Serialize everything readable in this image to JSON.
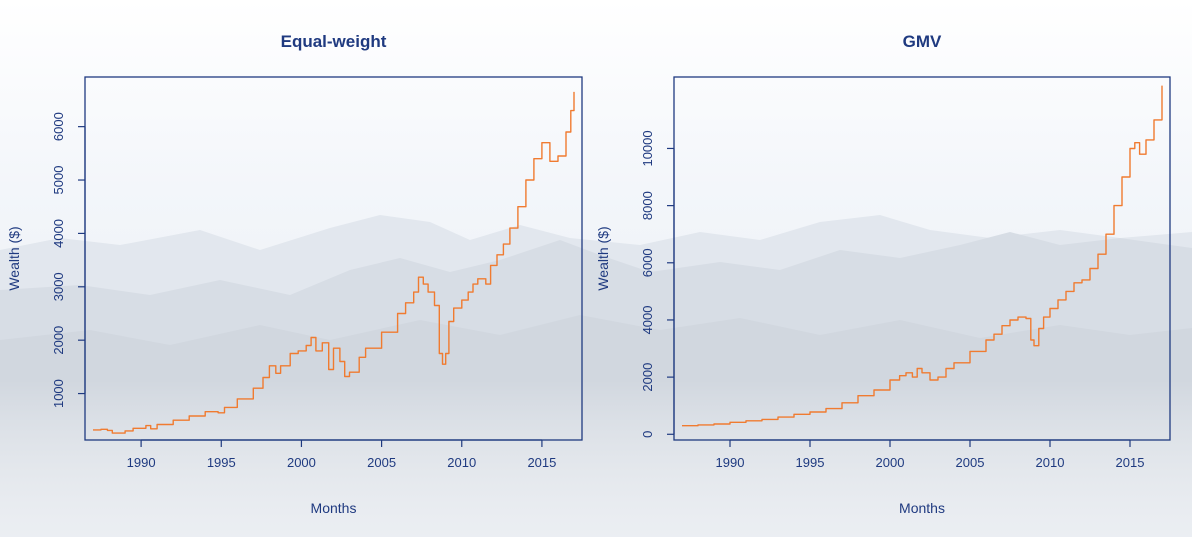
{
  "colors": {
    "axis": "#1f3a80",
    "text": "#1f3a80",
    "line": "#f07b30",
    "sky_top": "#ffffff",
    "sky_mid": "#eef2f7",
    "mountain_far": "#dde3ea",
    "mountain_near": "#cfd6df"
  },
  "chart_data": [
    {
      "type": "line",
      "title": "Equal-weight",
      "xlabel": "Months",
      "ylabel": "Wealth ($)",
      "xlim": [
        1986.5,
        2017.5
      ],
      "ylim": [
        130,
        6930
      ],
      "xticks": [
        1990,
        1995,
        2000,
        2005,
        2010,
        2015
      ],
      "yticks": [
        1000,
        2000,
        3000,
        4000,
        5000,
        6000
      ],
      "grid": false,
      "series": [
        {
          "x": [
            1987.0,
            1987.5,
            1987.9,
            1988.2,
            1989.0,
            1989.5,
            1990.3,
            1990.6,
            1991.0,
            1992.0,
            1993.0,
            1994.0,
            1994.8,
            1995.2,
            1996.0,
            1997.0,
            1997.6,
            1998.0,
            1998.4,
            1998.7,
            1999.3,
            1999.8,
            2000.3,
            2000.6,
            2000.9,
            2001.3,
            2001.7,
            2002.0,
            2002.4,
            2002.7,
            2003.0,
            2003.6,
            2004.0,
            2005.0,
            2006.0,
            2006.5,
            2007.0,
            2007.3,
            2007.6,
            2007.9,
            2008.3,
            2008.6,
            2008.8,
            2009.0,
            2009.2,
            2009.5,
            2010.0,
            2010.4,
            2010.7,
            2011.0,
            2011.5,
            2011.8,
            2012.2,
            2012.6,
            2013.0,
            2013.5,
            2014.0,
            2014.5,
            2015.0,
            2015.5,
            2016.0,
            2016.5,
            2016.8,
            2017.0
          ],
          "y": [
            320,
            330,
            310,
            260,
            300,
            350,
            400,
            340,
            420,
            500,
            580,
            660,
            640,
            740,
            900,
            1100,
            1300,
            1520,
            1380,
            1520,
            1750,
            1800,
            1900,
            2050,
            1800,
            1950,
            1450,
            1850,
            1600,
            1320,
            1400,
            1680,
            1850,
            2150,
            2500,
            2700,
            2900,
            3180,
            3050,
            2900,
            2650,
            1750,
            1550,
            1750,
            2350,
            2600,
            2750,
            2900,
            3050,
            3150,
            3050,
            3400,
            3600,
            3800,
            4100,
            4500,
            5000,
            5400,
            5700,
            5350,
            5450,
            5900,
            6300,
            6650
          ]
        }
      ]
    },
    {
      "type": "line",
      "title": "GMV",
      "xlabel": "Months",
      "ylabel": "Wealth ($)",
      "xlim": [
        1986.5,
        2017.5
      ],
      "ylim": [
        -200,
        12500
      ],
      "xticks": [
        1990,
        1995,
        2000,
        2005,
        2010,
        2015
      ],
      "yticks": [
        0,
        2000,
        4000,
        6000,
        8000,
        10000
      ],
      "grid": false,
      "series": [
        {
          "x": [
            1987.0,
            1988.0,
            1989.0,
            1990.0,
            1991.0,
            1992.0,
            1993.0,
            1994.0,
            1995.0,
            1996.0,
            1997.0,
            1998.0,
            1999.0,
            2000.0,
            2000.6,
            2001.0,
            2001.4,
            2001.7,
            2002.0,
            2002.5,
            2003.0,
            2003.5,
            2004.0,
            2005.0,
            2006.0,
            2006.5,
            2007.0,
            2007.5,
            2008.0,
            2008.5,
            2008.8,
            2009.0,
            2009.3,
            2009.6,
            2010.0,
            2010.5,
            2011.0,
            2011.5,
            2012.0,
            2012.5,
            2013.0,
            2013.5,
            2014.0,
            2014.5,
            2015.0,
            2015.3,
            2015.6,
            2016.0,
            2016.5,
            2017.0
          ],
          "y": [
            300,
            330,
            360,
            420,
            470,
            520,
            600,
            700,
            780,
            900,
            1100,
            1350,
            1550,
            1900,
            2050,
            2150,
            2000,
            2300,
            2150,
            1900,
            2000,
            2300,
            2500,
            2900,
            3300,
            3500,
            3800,
            4000,
            4100,
            4050,
            3300,
            3100,
            3700,
            4100,
            4400,
            4700,
            5000,
            5300,
            5400,
            5800,
            6300,
            7000,
            8000,
            9000,
            10000,
            10200,
            9800,
            10300,
            11000,
            12200
          ]
        }
      ]
    }
  ]
}
